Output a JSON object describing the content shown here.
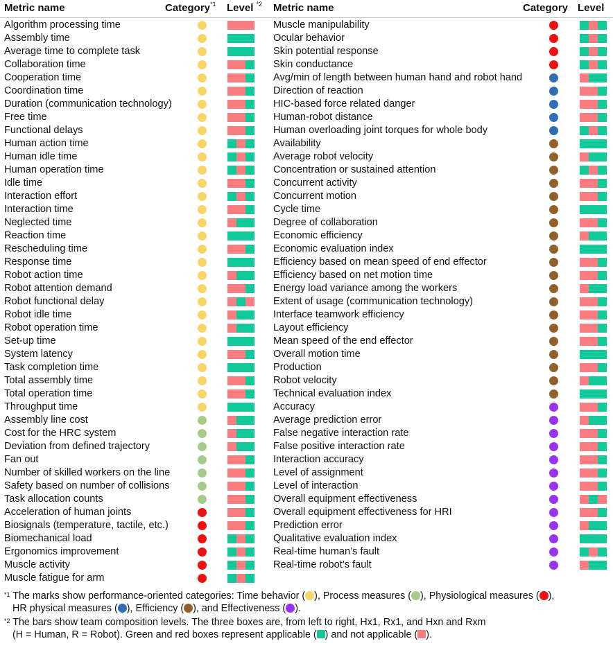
{
  "headers": {
    "metric": "Metric name",
    "category": "Category",
    "level": "Level",
    "fn1_mark": "*1",
    "fn2_mark": "*2"
  },
  "colors": {
    "time": "#f9d567",
    "process": "#a6cc8b",
    "physio": "#ee1111",
    "hr_physical": "#2f6db5",
    "efficiency": "#93602b",
    "effectiveness": "#9933ee",
    "applicable": "#12c99a",
    "not_applicable": "#f87c80"
  },
  "left_rows": [
    {
      "name": "Algorithm processing time",
      "cat": "time",
      "level": "nnn"
    },
    {
      "name": "Assembly time",
      "cat": "time",
      "level": "aaa"
    },
    {
      "name": "Average time to complete task",
      "cat": "time",
      "level": "aaa"
    },
    {
      "name": "Collaboration time",
      "cat": "time",
      "level": "nna"
    },
    {
      "name": "Cooperation time",
      "cat": "time",
      "level": "nna"
    },
    {
      "name": "Coordination time",
      "cat": "time",
      "level": "nna"
    },
    {
      "name": "Duration (communication technology)",
      "cat": "time",
      "level": "nna"
    },
    {
      "name": "Free time",
      "cat": "time",
      "level": "nna"
    },
    {
      "name": "Functional delays",
      "cat": "time",
      "level": "nna"
    },
    {
      "name": "Human action time",
      "cat": "time",
      "level": "ana"
    },
    {
      "name": "Human idle time",
      "cat": "time",
      "level": "ana"
    },
    {
      "name": "Human operation time",
      "cat": "time",
      "level": "ana"
    },
    {
      "name": "Idle time",
      "cat": "time",
      "level": "nna"
    },
    {
      "name": "Interaction effort",
      "cat": "time",
      "level": "ana"
    },
    {
      "name": "Interaction time",
      "cat": "time",
      "level": "nna"
    },
    {
      "name": "Neglected time",
      "cat": "time",
      "level": "naa"
    },
    {
      "name": "Reaction time",
      "cat": "time",
      "level": "aaa"
    },
    {
      "name": "Rescheduling time",
      "cat": "time",
      "level": "nna"
    },
    {
      "name": "Response time",
      "cat": "time",
      "level": "aaa"
    },
    {
      "name": "Robot action time",
      "cat": "time",
      "level": "naa"
    },
    {
      "name": "Robot attention demand",
      "cat": "time",
      "level": "nna"
    },
    {
      "name": "Robot functional delay",
      "cat": "time",
      "level": "nan"
    },
    {
      "name": "Robot idle time",
      "cat": "time",
      "level": "naa"
    },
    {
      "name": "Robot operation time",
      "cat": "time",
      "level": "naa"
    },
    {
      "name": "Set-up time",
      "cat": "time",
      "level": "aaa"
    },
    {
      "name": "System latency",
      "cat": "time",
      "level": "nna"
    },
    {
      "name": "Task completion time",
      "cat": "time",
      "level": "aaa"
    },
    {
      "name": "Total assembly time",
      "cat": "time",
      "level": "nna"
    },
    {
      "name": "Total operation time",
      "cat": "time",
      "level": "nna"
    },
    {
      "name": "Throughput time",
      "cat": "time",
      "level": "aaa"
    },
    {
      "name": "Assembly line cost",
      "cat": "process",
      "level": "naa"
    },
    {
      "name": "Cost for the HRC system",
      "cat": "process",
      "level": "naa"
    },
    {
      "name": "Deviation from defined trajectory",
      "cat": "process",
      "level": "naa"
    },
    {
      "name": "Fan out",
      "cat": "process",
      "level": "nna"
    },
    {
      "name": "Number of skilled workers on the line",
      "cat": "process",
      "level": "nna"
    },
    {
      "name": "Safety based on number of collisions",
      "cat": "process",
      "level": "nna"
    },
    {
      "name": "Task allocation counts",
      "cat": "process",
      "level": "nna"
    },
    {
      "name": "Acceleration of human joints",
      "cat": "physio",
      "level": "nna"
    },
    {
      "name": "Biosignals (temperature, tactile, etc.)",
      "cat": "physio",
      "level": "nna"
    },
    {
      "name": "Biomechanical load",
      "cat": "physio",
      "level": "ana"
    },
    {
      "name": "Ergonomics improvement",
      "cat": "physio",
      "level": "ana"
    },
    {
      "name": "Muscle activity",
      "cat": "physio",
      "level": "ana"
    },
    {
      "name": "Muscle fatigue for arm",
      "cat": "physio",
      "level": "ana"
    }
  ],
  "right_rows": [
    {
      "name": "Muscle manipulability",
      "cat": "physio",
      "level": "ana"
    },
    {
      "name": "Ocular behavior",
      "cat": "physio",
      "level": "ana"
    },
    {
      "name": "Skin potential response",
      "cat": "physio",
      "level": "ana"
    },
    {
      "name": "Skin conductance",
      "cat": "physio",
      "level": "ana"
    },
    {
      "name": "Avg/min of length between human hand and robot hand",
      "cat": "hr_physical",
      "level": "naa"
    },
    {
      "name": "Direction of reaction",
      "cat": "hr_physical",
      "level": "nna"
    },
    {
      "name": "HIC-based force related danger",
      "cat": "hr_physical",
      "level": "nna"
    },
    {
      "name": "Human-robot distance",
      "cat": "hr_physical",
      "level": "nna"
    },
    {
      "name": "Human overloading joint torques for whole body",
      "cat": "hr_physical",
      "level": "ana"
    },
    {
      "name": "Availability",
      "cat": "efficiency",
      "level": "aaa"
    },
    {
      "name": "Average robot velocity",
      "cat": "efficiency",
      "level": "naa"
    },
    {
      "name": "Concentration or sustained attention",
      "cat": "efficiency",
      "level": "ana"
    },
    {
      "name": "Concurrent activity",
      "cat": "efficiency",
      "level": "nna"
    },
    {
      "name": "Concurrent motion",
      "cat": "efficiency",
      "level": "nna"
    },
    {
      "name": "Cycle time",
      "cat": "efficiency",
      "level": "aaa"
    },
    {
      "name": "Degree of collaboration",
      "cat": "efficiency",
      "level": "nna"
    },
    {
      "name": "Economic efficiency",
      "cat": "efficiency",
      "level": "naa"
    },
    {
      "name": "Economic evaluation index",
      "cat": "efficiency",
      "level": "aaa"
    },
    {
      "name": "Efficiency based on mean speed of end effector",
      "cat": "efficiency",
      "level": "nna"
    },
    {
      "name": "Efficiency based on net motion time",
      "cat": "efficiency",
      "level": "nna"
    },
    {
      "name": "Energy load variance among the workers",
      "cat": "efficiency",
      "level": "naa"
    },
    {
      "name": "Extent of usage (communication technology)",
      "cat": "efficiency",
      "level": "nna"
    },
    {
      "name": "Interface teamwork efficiency",
      "cat": "efficiency",
      "level": "nna"
    },
    {
      "name": "Layout efficiency",
      "cat": "efficiency",
      "level": "nna"
    },
    {
      "name": "Mean speed of the end effector",
      "cat": "efficiency",
      "level": "nna"
    },
    {
      "name": "Overall motion time",
      "cat": "efficiency",
      "level": "aaa"
    },
    {
      "name": "Production",
      "cat": "efficiency",
      "level": "nna"
    },
    {
      "name": "Robot velocity",
      "cat": "efficiency",
      "level": "naa"
    },
    {
      "name": "Technical evaluation index",
      "cat": "efficiency",
      "level": "aaa"
    },
    {
      "name": "Accuracy",
      "cat": "effectiveness",
      "level": "nna"
    },
    {
      "name": "Average prediction error",
      "cat": "effectiveness",
      "level": "naa"
    },
    {
      "name": "False negative interaction rate",
      "cat": "effectiveness",
      "level": "nna"
    },
    {
      "name": "False positive interaction rate",
      "cat": "effectiveness",
      "level": "nna"
    },
    {
      "name": "Interaction accuracy",
      "cat": "effectiveness",
      "level": "nna"
    },
    {
      "name": "Level of assignment",
      "cat": "effectiveness",
      "level": "nna"
    },
    {
      "name": "Level of interaction",
      "cat": "effectiveness",
      "level": "nna"
    },
    {
      "name": "Overall equipment effectiveness",
      "cat": "effectiveness",
      "level": "nan"
    },
    {
      "name": "Overall equipment effectiveness for HRI",
      "cat": "effectiveness",
      "level": "nna"
    },
    {
      "name": "Prediction error",
      "cat": "effectiveness",
      "level": "naa"
    },
    {
      "name": "Qualitative evaluation index",
      "cat": "effectiveness",
      "level": "aaa"
    },
    {
      "name": "Real-time human’s fault",
      "cat": "effectiveness",
      "level": "ana"
    },
    {
      "name": "Real-time robot’s fault",
      "cat": "effectiveness",
      "level": "naa"
    }
  ],
  "footnote1": {
    "mark": "*1",
    "text_a": " The marks show performance-oriented categories: Time behavior (",
    "text_b": "), Process measures (",
    "text_c": "), Physiological measures (",
    "text_d": "),",
    "text_e": "HR physical measures (",
    "text_f": "), Efficiency (",
    "text_g": "), and Effectiveness (",
    "text_h": ")."
  },
  "footnote2": {
    "mark": "*2",
    "text_a": " The bars show team composition levels. The three boxes are, from left to right, Hx1, Rx1, and Hxn and Rxm",
    "text_b": "(H = Human, R = Robot). Green and red boxes represent applicable (",
    "text_c": ") and not applicable (",
    "text_d": ")."
  }
}
